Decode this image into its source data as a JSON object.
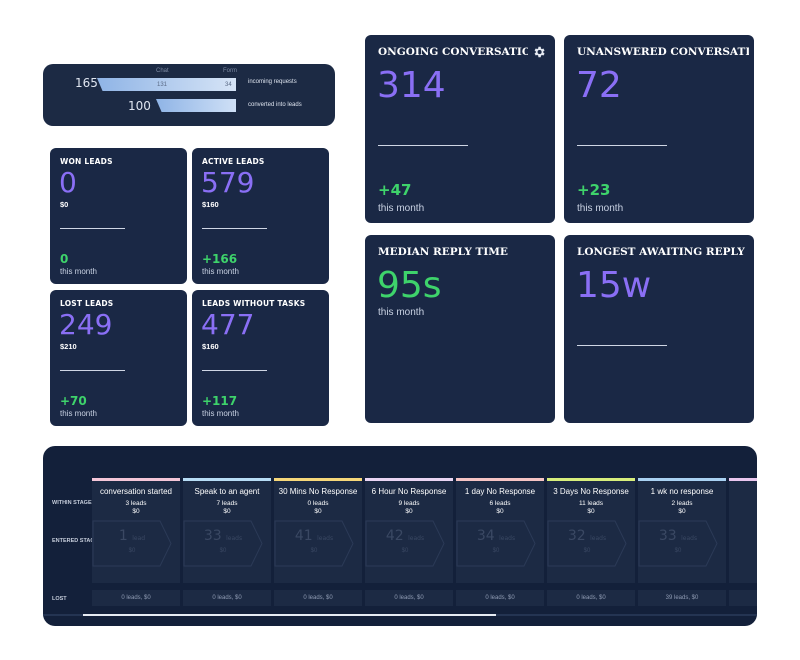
{
  "incoming": {
    "chat_label": "Chat",
    "form_label": "Form",
    "total_requests": "165",
    "chat_count": "131",
    "form_count": "34",
    "requests_label": "incoming requests",
    "converted": "100",
    "converted_label": "converted into leads"
  },
  "leads": [
    {
      "title": "WON LEADS",
      "value": "0",
      "money": "$0",
      "delta": "0",
      "sub": "this month"
    },
    {
      "title": "ACTIVE LEADS",
      "value": "579",
      "money": "$160",
      "delta": "+166",
      "sub": "this month"
    },
    {
      "title": "LOST LEADS",
      "value": "249",
      "money": "$210",
      "delta": "+70",
      "sub": "this month"
    },
    {
      "title": "LEADS WITHOUT TASKS",
      "value": "477",
      "money": "$160",
      "delta": "+117",
      "sub": "this month"
    }
  ],
  "conversations": {
    "ongoing": {
      "title": "ONGOING CONVERSATIONS",
      "value": "314",
      "delta": "+47",
      "sub": "this month"
    },
    "unanswered": {
      "title": "UNANSWERED CONVERSATIONS",
      "value": "72",
      "delta": "+23",
      "sub": "this month"
    },
    "median": {
      "title": "MEDIAN REPLY TIME",
      "value": "95s",
      "sub": "this month"
    },
    "longest": {
      "title": "LONGEST AWAITING REPLY",
      "value": "15w"
    }
  },
  "colors": {
    "accent_purple": "#8a6ff5",
    "accent_green": "#3ed36b",
    "card_bg": "#1a2845"
  },
  "pipeline": {
    "row_within": "WITHIN STAGE",
    "row_entered": "ENTERED STAGE",
    "row_lost": "LOST",
    "stages": [
      {
        "name": "conversation started",
        "leads": "3 leads",
        "money": "$0",
        "entered": "1",
        "entered_unit": "lead",
        "entered_money": "$0",
        "lost": "0 leads, $0",
        "color": "#f4c6d8"
      },
      {
        "name": "Speak to an agent",
        "leads": "7 leads",
        "money": "$0",
        "entered": "33",
        "entered_unit": "leads",
        "entered_money": "$0",
        "lost": "0 leads, $0",
        "color": "#b7dcf5"
      },
      {
        "name": "30 Mins No Response",
        "leads": "0 leads",
        "money": "$0",
        "entered": "41",
        "entered_unit": "leads",
        "entered_money": "$0",
        "lost": "0 leads, $0",
        "color": "#f6d77a"
      },
      {
        "name": "6 Hour No Response",
        "leads": "9 leads",
        "money": "$0",
        "entered": "42",
        "entered_unit": "leads",
        "entered_money": "$0",
        "lost": "0 leads, $0",
        "color": "#e9d5f3"
      },
      {
        "name": "1 day No Response",
        "leads": "6 leads",
        "money": "$0",
        "entered": "34",
        "entered_unit": "leads",
        "entered_money": "$0",
        "lost": "0 leads, $0",
        "color": "#f6c4c4"
      },
      {
        "name": "3 Days No Response",
        "leads": "11 leads",
        "money": "$0",
        "entered": "32",
        "entered_unit": "leads",
        "entered_money": "$0",
        "lost": "0 leads, $0",
        "color": "#d8ee7c"
      },
      {
        "name": "1 wk no response",
        "leads": "2 leads",
        "money": "$0",
        "entered": "33",
        "entered_unit": "leads",
        "entered_money": "$0",
        "lost": "39 leads, $0",
        "color": "#a9d1f2"
      }
    ],
    "partial_stage_color": "#e9c6ee"
  }
}
